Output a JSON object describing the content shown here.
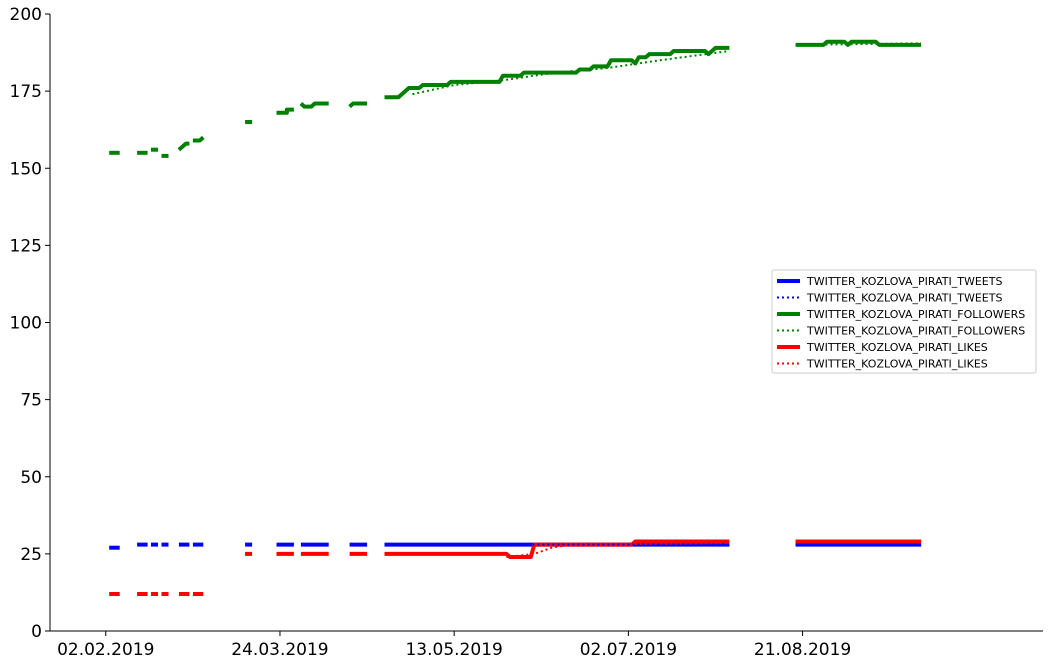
{
  "chart_data": {
    "type": "line",
    "title": "",
    "xlabel": "",
    "ylabel": "",
    "x_axis_type": "date",
    "xlim": [
      "2019-01-17",
      "2019-10-29"
    ],
    "ylim": [
      0,
      200
    ],
    "x_ticks": [
      {
        "date": "2019-02-02",
        "label": "02.02.2019"
      },
      {
        "date": "2019-03-24",
        "label": "24.03.2019"
      },
      {
        "date": "2019-05-13",
        "label": "13.05.2019"
      },
      {
        "date": "2019-07-02",
        "label": "02.07.2019"
      },
      {
        "date": "2019-08-21",
        "label": "21.08.2019"
      }
    ],
    "y_ticks": [
      0,
      25,
      50,
      75,
      100,
      125,
      150,
      175,
      200
    ],
    "y_tick_labels": [
      "0",
      "25",
      "50",
      "75",
      "100",
      "125",
      "150",
      "175",
      "200"
    ],
    "grid": false,
    "legend_position": "center-right",
    "series": [
      {
        "name": "TWITTER_KOZLOVA_PIRATI_TWEETS",
        "color": "#0000ff",
        "style": "solid",
        "segments": [
          [
            [
              "2019-02-03",
              27
            ],
            [
              "2019-02-06",
              27
            ]
          ],
          [
            [
              "2019-02-11",
              28
            ],
            [
              "2019-02-14",
              28
            ]
          ],
          [
            [
              "2019-02-15",
              28
            ],
            [
              "2019-02-17",
              28
            ]
          ],
          [
            [
              "2019-02-18",
              28
            ],
            [
              "2019-02-20",
              28
            ]
          ],
          [
            [
              "2019-02-23",
              28
            ],
            [
              "2019-02-26",
              28
            ]
          ],
          [
            [
              "2019-02-27",
              28
            ],
            [
              "2019-03-02",
              28
            ]
          ],
          [
            [
              "2019-03-14",
              28
            ],
            [
              "2019-03-16",
              28
            ]
          ],
          [
            [
              "2019-03-23",
              28
            ],
            [
              "2019-03-28",
              28
            ]
          ],
          [
            [
              "2019-03-30",
              28
            ],
            [
              "2019-04-07",
              28
            ]
          ],
          [
            [
              "2019-04-13",
              28
            ],
            [
              "2019-04-18",
              28
            ]
          ],
          [
            [
              "2019-04-23",
              28
            ],
            [
              "2019-07-03",
              28
            ],
            [
              "2019-07-03",
              28
            ],
            [
              "2019-07-31",
              28
            ]
          ],
          [
            [
              "2019-08-19",
              28
            ],
            [
              "2019-09-24",
              28
            ]
          ]
        ]
      },
      {
        "name": "TWITTER_KOZLOVA_PIRATI_TWEETS",
        "color": "#0000ff",
        "style": "dotted",
        "segments": [
          [
            [
              "2019-05-01",
              28
            ],
            [
              "2019-07-31",
              28
            ]
          ],
          [
            [
              "2019-08-19",
              28
            ],
            [
              "2019-09-24",
              28
            ]
          ]
        ]
      },
      {
        "name": "TWITTER_KOZLOVA_PIRATI_FOLLOWERS",
        "color": "#008000",
        "style": "solid",
        "segments": [
          [
            [
              "2019-02-03",
              155
            ],
            [
              "2019-02-06",
              155
            ]
          ],
          [
            [
              "2019-02-11",
              155
            ],
            [
              "2019-02-14",
              155
            ]
          ],
          [
            [
              "2019-02-15",
              156
            ],
            [
              "2019-02-17",
              156
            ]
          ],
          [
            [
              "2019-02-18",
              154
            ],
            [
              "2019-02-20",
              154
            ]
          ],
          [
            [
              "2019-02-23",
              156
            ],
            [
              "2019-02-25",
              158
            ],
            [
              "2019-02-26",
              158
            ]
          ],
          [
            [
              "2019-02-27",
              159
            ],
            [
              "2019-03-01",
              159
            ],
            [
              "2019-03-02",
              160
            ]
          ],
          [
            [
              "2019-03-14",
              165
            ],
            [
              "2019-03-16",
              165
            ]
          ],
          [
            [
              "2019-03-23",
              168
            ],
            [
              "2019-03-26",
              168
            ],
            [
              "2019-03-26",
              169
            ],
            [
              "2019-03-28",
              169
            ]
          ],
          [
            [
              "2019-03-30",
              171
            ],
            [
              "2019-03-31",
              170
            ],
            [
              "2019-04-02",
              170
            ],
            [
              "2019-04-03",
              171
            ],
            [
              "2019-04-07",
              171
            ]
          ],
          [
            [
              "2019-04-13",
              170
            ],
            [
              "2019-04-14",
              171
            ],
            [
              "2019-04-18",
              171
            ]
          ],
          [
            [
              "2019-04-23",
              173
            ],
            [
              "2019-04-27",
              173
            ],
            [
              "2019-04-30",
              176
            ],
            [
              "2019-05-03",
              176
            ],
            [
              "2019-05-04",
              177
            ],
            [
              "2019-05-11",
              177
            ],
            [
              "2019-05-12",
              178
            ],
            [
              "2019-05-26",
              178
            ],
            [
              "2019-05-27",
              180
            ],
            [
              "2019-06-01",
              180
            ],
            [
              "2019-06-02",
              181
            ],
            [
              "2019-06-17",
              181
            ],
            [
              "2019-06-18",
              182
            ],
            [
              "2019-06-21",
              182
            ],
            [
              "2019-06-22",
              183
            ],
            [
              "2019-06-26",
              183
            ],
            [
              "2019-06-27",
              185
            ],
            [
              "2019-07-03",
              185
            ],
            [
              "2019-07-04",
              184
            ],
            [
              "2019-07-05",
              186
            ],
            [
              "2019-07-07",
              186
            ],
            [
              "2019-07-08",
              187
            ],
            [
              "2019-07-14",
              187
            ],
            [
              "2019-07-15",
              188
            ],
            [
              "2019-07-24",
              188
            ],
            [
              "2019-07-25",
              187
            ],
            [
              "2019-07-26",
              188
            ],
            [
              "2019-07-27",
              189
            ],
            [
              "2019-07-31",
              189
            ]
          ],
          [
            [
              "2019-08-19",
              190
            ],
            [
              "2019-08-27",
              190
            ],
            [
              "2019-08-28",
              191
            ],
            [
              "2019-09-02",
              191
            ],
            [
              "2019-09-03",
              190
            ],
            [
              "2019-09-04",
              191
            ],
            [
              "2019-09-11",
              191
            ],
            [
              "2019-09-12",
              190
            ],
            [
              "2019-09-24",
              190
            ]
          ]
        ]
      },
      {
        "name": "TWITTER_KOZLOVA_PIRATI_FOLLOWERS",
        "color": "#008000",
        "style": "dotted",
        "segments": [
          [
            [
              "2019-05-01",
              174
            ],
            [
              "2019-05-13",
              177
            ],
            [
              "2019-05-27",
              178.5
            ],
            [
              "2019-06-11",
              181
            ],
            [
              "2019-06-26",
              182.5
            ],
            [
              "2019-07-11",
              185
            ],
            [
              "2019-07-31",
              188
            ]
          ],
          [
            [
              "2019-08-19",
              190
            ],
            [
              "2019-09-24",
              190.5
            ]
          ]
        ]
      },
      {
        "name": "TWITTER_KOZLOVA_PIRATI_LIKES",
        "color": "#ff0000",
        "style": "solid",
        "segments": [
          [
            [
              "2019-02-03",
              12
            ],
            [
              "2019-02-06",
              12
            ]
          ],
          [
            [
              "2019-02-11",
              12
            ],
            [
              "2019-02-14",
              12
            ]
          ],
          [
            [
              "2019-02-15",
              12
            ],
            [
              "2019-02-17",
              12
            ]
          ],
          [
            [
              "2019-02-18",
              12
            ],
            [
              "2019-02-20",
              12
            ]
          ],
          [
            [
              "2019-02-23",
              12
            ],
            [
              "2019-02-26",
              12
            ]
          ],
          [
            [
              "2019-02-27",
              12
            ],
            [
              "2019-03-02",
              12
            ]
          ],
          [
            [
              "2019-03-14",
              25
            ],
            [
              "2019-03-16",
              25
            ]
          ],
          [
            [
              "2019-03-23",
              25
            ],
            [
              "2019-03-28",
              25
            ]
          ],
          [
            [
              "2019-03-30",
              25
            ],
            [
              "2019-04-07",
              25
            ]
          ],
          [
            [
              "2019-04-13",
              25
            ],
            [
              "2019-04-18",
              25
            ]
          ],
          [
            [
              "2019-04-23",
              25
            ],
            [
              "2019-05-28",
              25
            ],
            [
              "2019-05-29",
              24
            ],
            [
              "2019-06-04",
              24
            ],
            [
              "2019-06-05",
              28
            ],
            [
              "2019-07-03",
              28
            ],
            [
              "2019-07-04",
              29
            ],
            [
              "2019-07-31",
              29
            ]
          ],
          [
            [
              "2019-08-19",
              29
            ],
            [
              "2019-09-24",
              29
            ]
          ]
        ]
      },
      {
        "name": "TWITTER_KOZLOVA_PIRATI_LIKES",
        "color": "#ff0000",
        "style": "dotted",
        "segments": [
          [
            [
              "2019-05-28",
              24
            ],
            [
              "2019-06-05",
              25
            ],
            [
              "2019-06-10",
              27
            ],
            [
              "2019-06-15",
              28
            ],
            [
              "2019-07-31",
              28.5
            ]
          ],
          [
            [
              "2019-08-19",
              29
            ],
            [
              "2019-09-24",
              29
            ]
          ]
        ]
      }
    ]
  }
}
